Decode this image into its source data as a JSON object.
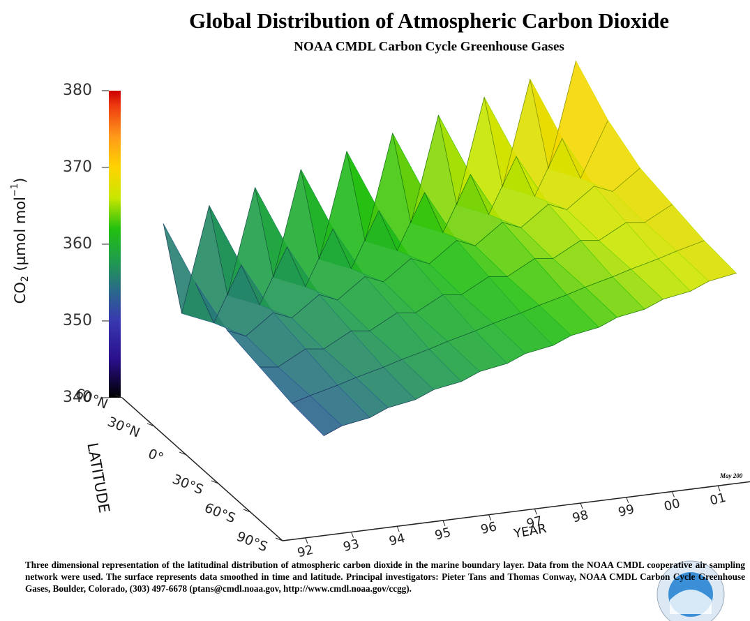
{
  "chart_data": {
    "type": "surface3d",
    "title": "Global Distribution of Atmospheric Carbon Dioxide",
    "subtitle": "NOAA CMDL Carbon Cycle Greenhouse Gases",
    "z_label": {
      "main": "CO",
      "sub": "2",
      "unit": " (µmol mol",
      "exp": "−1",
      "close": ")"
    },
    "lat_label": "LATITUDE",
    "x_label": "YEAR",
    "date_note": "May 200",
    "caption": "Three dimensional representation of the latitudinal distribution of atmospheric carbon dioxide in the marine boundary layer.  Data from the NOAA CMDL cooperative air sampling network were used.  The surface represents data smoothed in time and latitude.  Principal investigators:  Pieter Tans and Thomas Conway, NOAA CMDL Carbon Cycle Greenhouse Gases, Boulder, Colorado, (303) 497-6678 (ptans@cmdl.noaa.gov, http://www.cmdl.noaa.gov/ccgg).",
    "x": [
      1992.4,
      1992.8,
      1993.4,
      1993.8,
      1994.4,
      1994.8,
      1995.4,
      1995.8,
      1996.4,
      1996.8,
      1997.4,
      1997.8,
      1998.4,
      1998.8,
      1999.4,
      1999.8,
      2000.4,
      2000.8,
      2001.4
    ],
    "xlim": [
      1991.5,
      2001.7
    ],
    "xticks": [
      {
        "value": 1992,
        "label": "92"
      },
      {
        "value": 1993,
        "label": "93"
      },
      {
        "value": 1994,
        "label": "94"
      },
      {
        "value": 1995,
        "label": "95"
      },
      {
        "value": 1996,
        "label": "96"
      },
      {
        "value": 1997,
        "label": "97"
      },
      {
        "value": 1998,
        "label": "98"
      },
      {
        "value": 1999,
        "label": "99"
      },
      {
        "value": 2000,
        "label": "00"
      },
      {
        "value": 2001,
        "label": "01"
      }
    ],
    "latlim": [
      -90,
      60
    ],
    "latticks": [
      {
        "value": 60,
        "label": "60°N"
      },
      {
        "value": 30,
        "label": "30°N"
      },
      {
        "value": 0,
        "label": "0°"
      },
      {
        "value": -30,
        "label": "30°S"
      },
      {
        "value": -60,
        "label": "60°S"
      },
      {
        "value": -90,
        "label": "90°S"
      }
    ],
    "zlim": [
      340,
      380
    ],
    "zticks": [
      340,
      350,
      360,
      370,
      380
    ],
    "colorscale": [
      {
        "value": 340,
        "color": "#000000"
      },
      {
        "value": 345,
        "color": "#2a0f8c"
      },
      {
        "value": 350,
        "color": "#3838b0"
      },
      {
        "value": 354,
        "color": "#2a6a8a"
      },
      {
        "value": 358,
        "color": "#1f9e4a"
      },
      {
        "value": 362,
        "color": "#22c010"
      },
      {
        "value": 366,
        "color": "#c8e600"
      },
      {
        "value": 370,
        "color": "#ffd400"
      },
      {
        "value": 374,
        "color": "#ff9a1a"
      },
      {
        "value": 378,
        "color": "#ee3b10"
      },
      {
        "value": 380,
        "color": "#cc0000"
      }
    ],
    "series": [
      {
        "lat": 60,
        "values": [
          362.0,
          350.0,
          363.6,
          351.6,
          365.2,
          353.2,
          366.8,
          354.8,
          368.4,
          356.4,
          370.0,
          358.0,
          371.6,
          359.6,
          373.2,
          361.2,
          374.8,
          362.8,
          376.4
        ]
      },
      {
        "lat": 30,
        "values": [
          358.0,
          352.5,
          359.6,
          354.1,
          361.2,
          355.7,
          362.8,
          357.3,
          364.4,
          358.9,
          366.0,
          360.5,
          367.6,
          362.1,
          369.2,
          363.7,
          370.8,
          365.3,
          372.4
        ]
      },
      {
        "lat": 0,
        "values": [
          355.5,
          354.5,
          357.1,
          356.1,
          358.7,
          357.7,
          360.3,
          359.3,
          361.9,
          360.9,
          363.5,
          362.5,
          365.1,
          364.1,
          366.7,
          365.7,
          368.3,
          367.3,
          369.9
        ]
      },
      {
        "lat": -30,
        "values": [
          354.5,
          354.2,
          356.1,
          355.8,
          357.7,
          357.4,
          359.3,
          359.0,
          360.9,
          360.6,
          362.5,
          362.2,
          364.1,
          363.8,
          365.7,
          365.4,
          367.3,
          367.0,
          368.9
        ]
      },
      {
        "lat": -60,
        "values": [
          353.5,
          354.2,
          355.1,
          355.8,
          356.7,
          357.4,
          358.3,
          359.0,
          359.9,
          360.6,
          361.5,
          362.2,
          363.1,
          363.8,
          364.7,
          365.4,
          366.3,
          367.0,
          367.9
        ]
      },
      {
        "lat": -90,
        "values": [
          353.0,
          354.0,
          354.6,
          355.6,
          356.2,
          357.2,
          357.8,
          358.8,
          359.4,
          360.4,
          361.0,
          362.0,
          362.6,
          363.6,
          364.2,
          365.2,
          365.8,
          366.8,
          367.4
        ]
      }
    ]
  }
}
